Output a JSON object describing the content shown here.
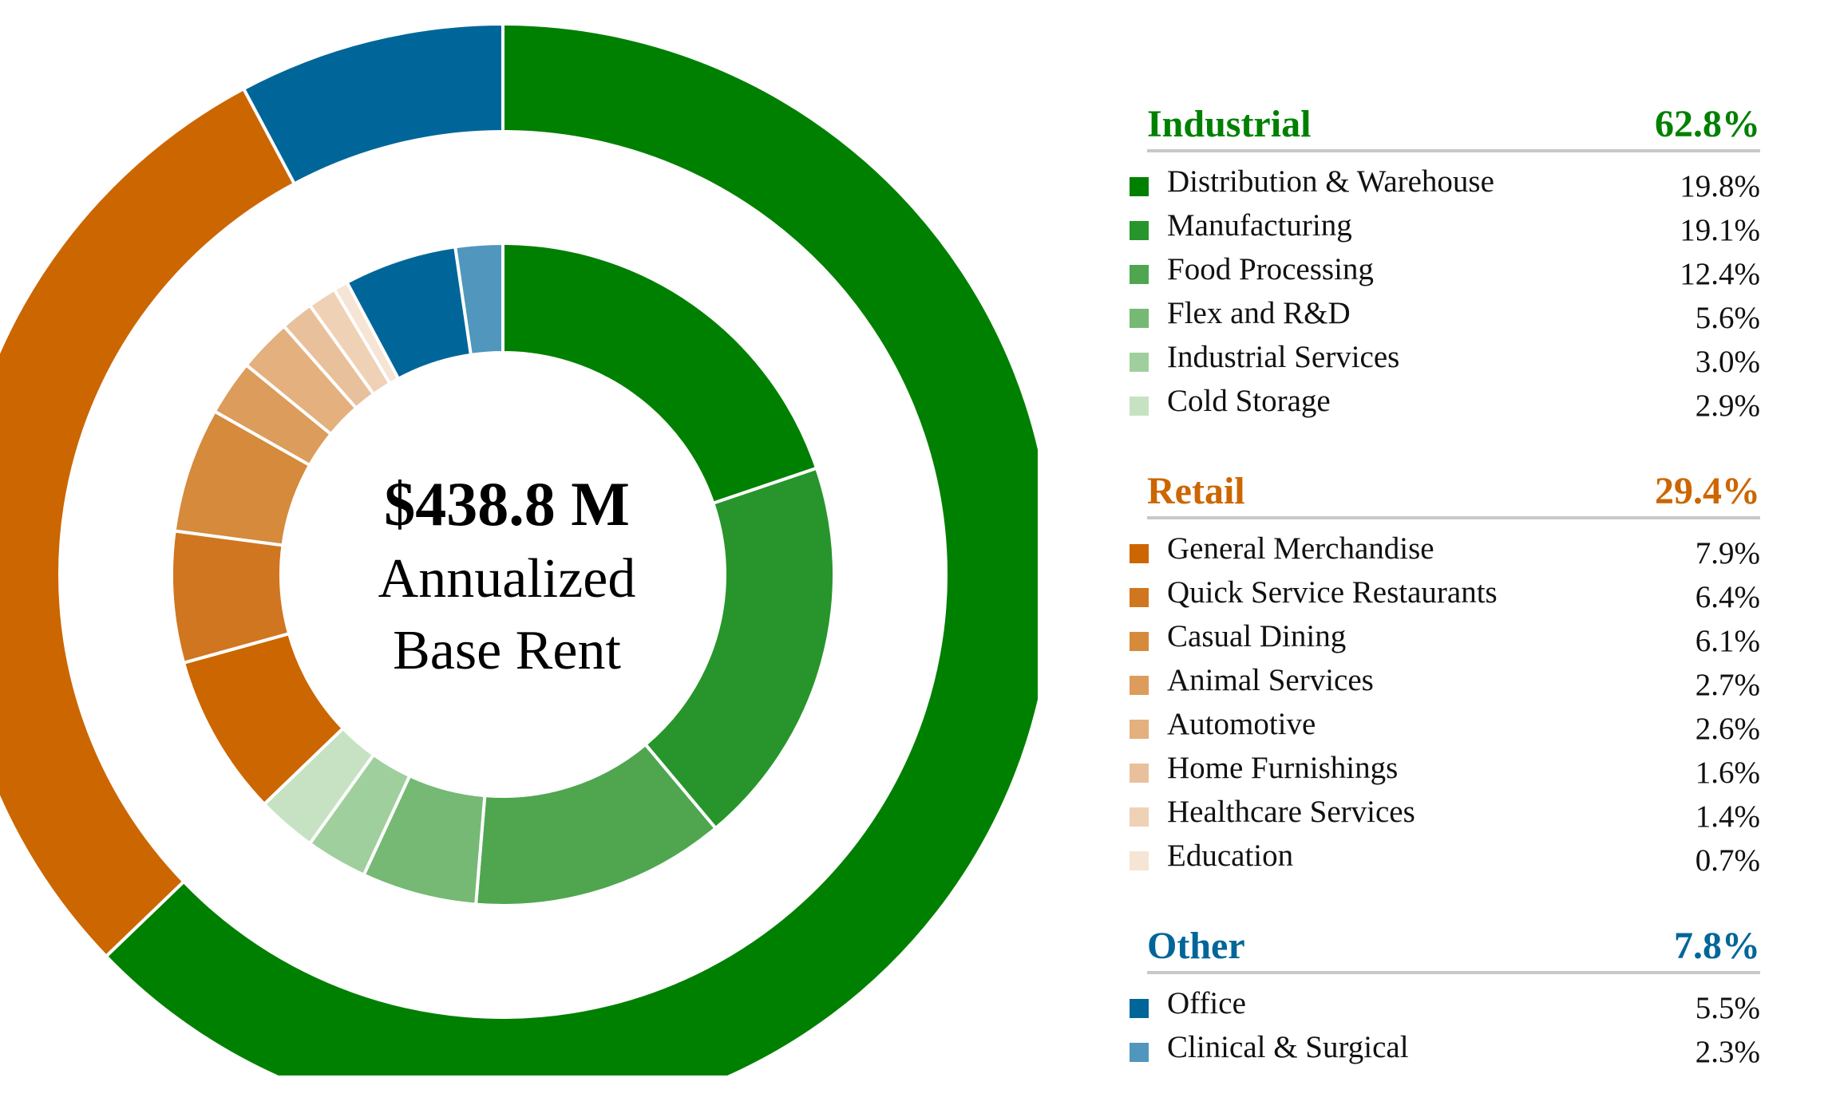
{
  "chart_data": {
    "type": "pie",
    "subtype": "nested-donut",
    "center": {
      "total": "$438.8 M",
      "line1": "Annualized",
      "line2": "Base Rent"
    },
    "legend_position": "right",
    "groups": [
      {
        "name": "Industrial",
        "value": 62.8,
        "value_label": "62.8%",
        "color": "#008000",
        "items": [
          {
            "label": "Distribution & Warehouse",
            "value": 19.8,
            "value_label": "19.8%",
            "color": "#008000"
          },
          {
            "label": "Manufacturing",
            "value": 19.1,
            "value_label": "19.1%",
            "color": "#27952b"
          },
          {
            "label": "Food Processing",
            "value": 12.4,
            "value_label": "12.4%",
            "color": "#4fa64f"
          },
          {
            "label": "Flex and R&D",
            "value": 5.6,
            "value_label": "5.6%",
            "color": "#75b975"
          },
          {
            "label": "Industrial Services",
            "value": 3.0,
            "value_label": "3.0%",
            "color": "#9fcf9c"
          },
          {
            "label": "Cold Storage",
            "value": 2.9,
            "value_label": "2.9%",
            "color": "#c6e2c3"
          }
        ]
      },
      {
        "name": "Retail",
        "value": 29.4,
        "value_label": "29.4%",
        "color": "#cc6600",
        "items": [
          {
            "label": "General Merchandise",
            "value": 7.9,
            "value_label": "7.9%",
            "color": "#cc6600"
          },
          {
            "label": "Quick Service Restaurants",
            "value": 6.4,
            "value_label": "6.4%",
            "color": "#d07620"
          },
          {
            "label": "Casual Dining",
            "value": 6.1,
            "value_label": "6.1%",
            "color": "#d58a3c"
          },
          {
            "label": "Animal Services",
            "value": 2.7,
            "value_label": "2.7%",
            "color": "#dc9c5c"
          },
          {
            "label": "Automotive",
            "value": 2.6,
            "value_label": "2.6%",
            "color": "#e3b07e"
          },
          {
            "label": "Home Furnishings",
            "value": 1.6,
            "value_label": "1.6%",
            "color": "#e9c09c"
          },
          {
            "label": "Healthcare Services",
            "value": 1.4,
            "value_label": "1.4%",
            "color": "#efd1b6"
          },
          {
            "label": "Education",
            "value": 0.7,
            "value_label": "0.7%",
            "color": "#f6e4d4"
          }
        ]
      },
      {
        "name": "Other",
        "value": 7.8,
        "value_label": "7.8%",
        "color": "#006699",
        "items": [
          {
            "label": "Office",
            "value": 5.5,
            "value_label": "5.5%",
            "color": "#006699"
          },
          {
            "label": "Clinical & Surgical",
            "value": 2.3,
            "value_label": "2.3%",
            "color": "#5096bd"
          }
        ]
      }
    ]
  }
}
